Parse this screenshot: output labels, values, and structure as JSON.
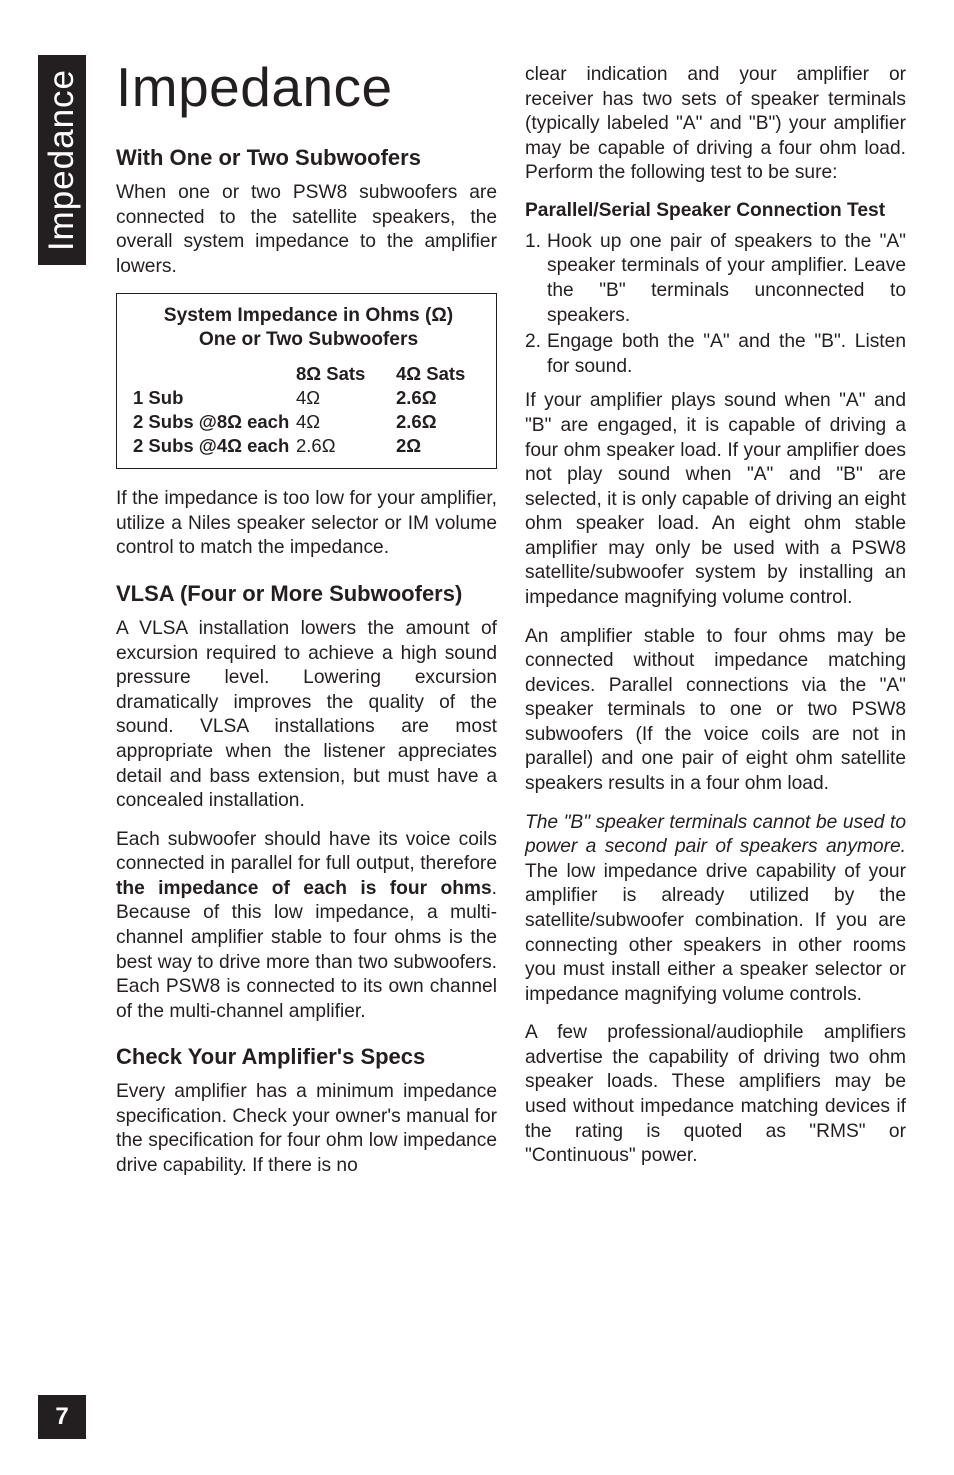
{
  "sidebar": {
    "label": "Impedance"
  },
  "page_number": "7",
  "left": {
    "title": "Impedance",
    "h_one_two": "With One or Two Subwoofers",
    "p_one_two": "When one or two PSW8 subwoofers are connected to the satellite speakers, the overall system impedance to the amplifier lowers.",
    "table": {
      "title_l1": "System Impedance in Ohms (Ω)",
      "title_l2": "One or Two Subwoofers",
      "hdr_c2": "8Ω Sats",
      "hdr_c3": "4Ω Sats",
      "r1_lbl": "1 Sub",
      "r1_c2": "4Ω",
      "r1_c3": "2.6Ω",
      "r2_lbl": "2 Subs @8Ω each",
      "r2_c2": "4Ω",
      "r2_c3": "2.6Ω",
      "r3_lbl": "2 Subs @4Ω each",
      "r3_c2": "2.6Ω",
      "r3_c3": "2Ω"
    },
    "p_after_table": "If the impedance is too low for your amplifier, utilize a Niles speaker selector or IM volume control to match the impedance.",
    "h_vlsa": "VLSA (Four or More Subwoofers)",
    "p_vlsa_1": "A VLSA installation lowers the amount of excursion required to achieve a high sound pressure level. Lowering excursion dramatically improves the quality of the sound. VLSA installations are most appropriate when the listener appreciates detail and bass extension, but must have a concealed installation.",
    "p_vlsa_2_pre": "Each subwoofer should have its voice coils connected in parallel for full output, therefore ",
    "p_vlsa_2_bold": "the impedance of each is four ohms",
    "p_vlsa_2_post": ". Because of this low impedance, a multi-channel amplifier stable to four ohms is the best way to drive more than two subwoofers. Each PSW8 is connected to its own channel of the multi-channel amplifier.",
    "h_check": "Check Your Amplifier's Specs",
    "p_check": "Every amplifier has a minimum impedance specification. Check your owner's manual for the specification for four ohm low impedance drive capability. If there is no "
  },
  "right": {
    "p_top": "clear indication and your amplifier or receiver has two sets of speaker terminals (typically labeled \"A\" and \"B\") your amplifier may be capable of driving a four ohm load. Perform the following test to be sure:",
    "subhead": "Parallel/Serial Speaker Connection Test",
    "li1_num": "1.",
    "li1": "Hook up one pair of speakers to the \"A\" speaker terminals of your amplifier. Leave the \"B\" terminals unconnected to speakers.",
    "li2_num": "2.",
    "li2": "Engage both the \"A\" and the \"B\". Listen for sound.",
    "p_if": "If your amplifier plays sound when \"A\" and \"B\" are engaged, it is capable of driving a four ohm speaker load. If your amplifier does not play sound when \"A\" and \"B\" are selected, it is only capable of driving an eight ohm speaker load. An eight ohm stable amplifier may only be used with a PSW8 satellite/subwoofer system by installing an impedance magnifying volume control.",
    "p_amp": "An amplifier stable to four ohms may be connected without impedance matching devices. Parallel connections via the \"A\" speaker terminals to one or two PSW8 subwoofers (If the voice coils are not in parallel) and one pair of eight ohm satellite speakers results in a four ohm load.",
    "p_b_ital": "The \"B\" speaker terminals cannot be used to power a second pair of speakers anymore.",
    "p_b_rest": " The low impedance drive capability of your amplifier is already utilized by the satellite/subwoofer combination. If you are connecting other speakers in other rooms you must install either a speaker selector or impedance magnifying volume controls.",
    "p_pro": "A few professional/audiophile amplifiers advertise the capability of driving two ohm speaker loads. These amplifiers may be used without impedance matching devices if the rating is quoted as \"RMS\" or \"Continuous\" power."
  }
}
